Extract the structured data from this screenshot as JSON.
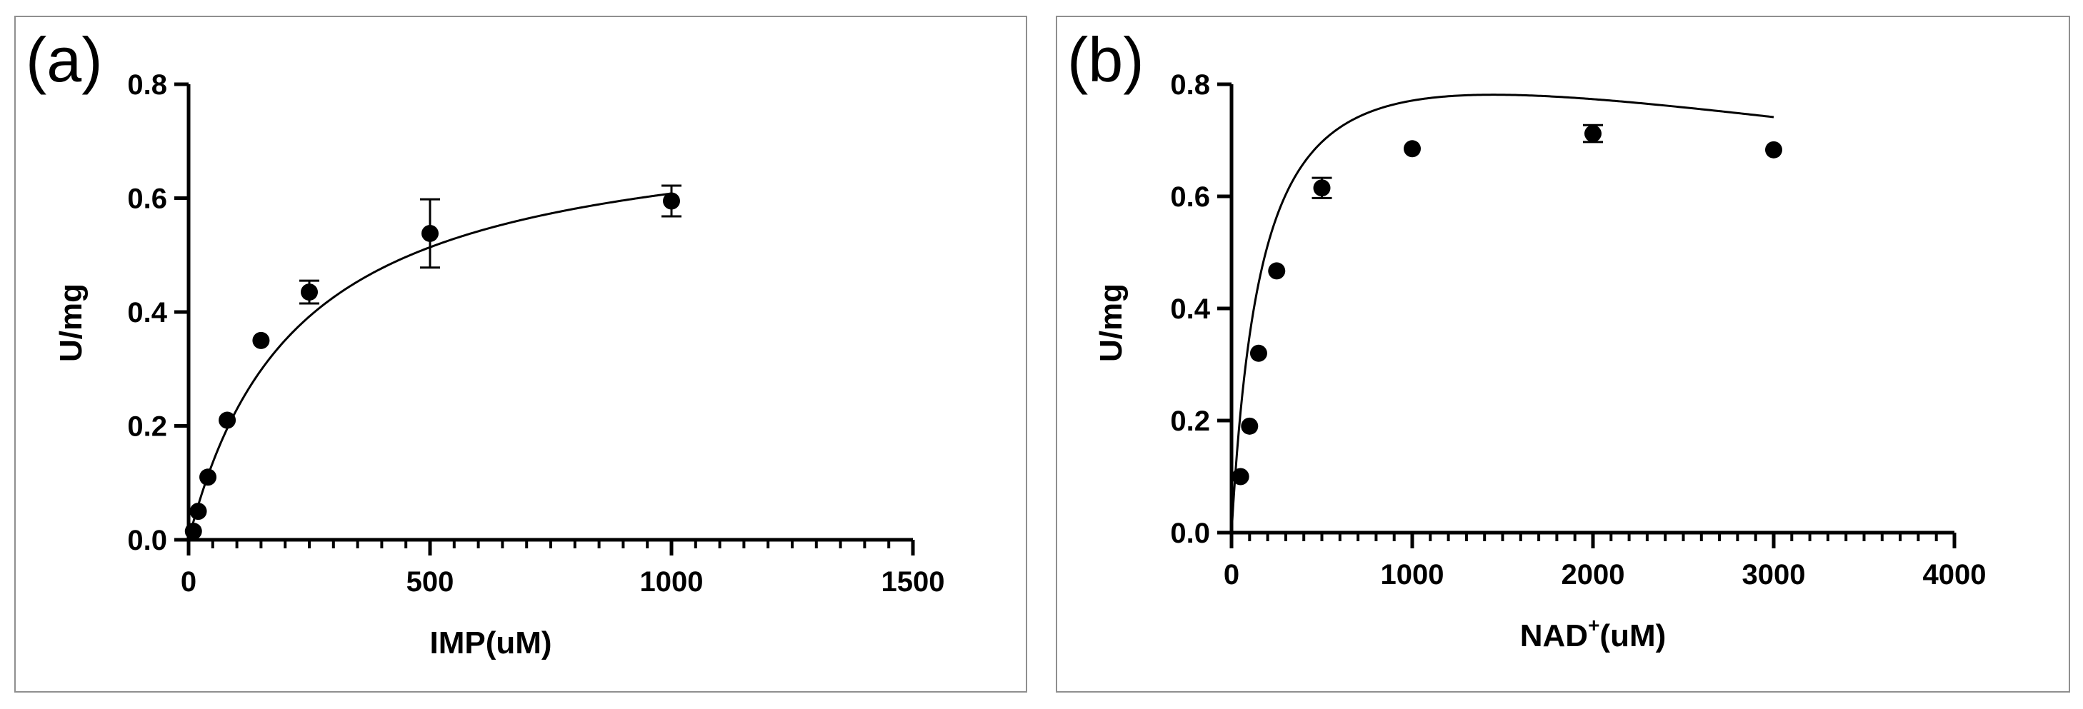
{
  "chart_data": [
    {
      "panel_label": "(a)",
      "type": "scatter",
      "xlabel": "IMP(uM)",
      "ylabel": "U/mg",
      "xlim": [
        0,
        1500
      ],
      "ylim": [
        0,
        0.8
      ],
      "x_ticks": [
        0,
        500,
        1000,
        1500
      ],
      "x_tick_labels": [
        "0",
        "500",
        "1000",
        "1500"
      ],
      "y_ticks": [
        0.0,
        0.2,
        0.4,
        0.6,
        0.8
      ],
      "y_tick_labels": [
        "0.0",
        "0.2",
        "0.4",
        "0.6",
        "0.8"
      ],
      "x_minor_step": 50,
      "points": [
        {
          "x": 10,
          "y": 0.015,
          "err": 0
        },
        {
          "x": 20,
          "y": 0.05,
          "err": 0
        },
        {
          "x": 40,
          "y": 0.11,
          "err": 0
        },
        {
          "x": 80,
          "y": 0.21,
          "err": 0
        },
        {
          "x": 150,
          "y": 0.35,
          "err": 0
        },
        {
          "x": 250,
          "y": 0.435,
          "err": 0.02
        },
        {
          "x": 500,
          "y": 0.538,
          "err": 0.06
        },
        {
          "x": 1000,
          "y": 0.595,
          "err": 0.027
        }
      ],
      "fit": {
        "model": "michaelis-menten",
        "vmax": 0.745,
        "km": 225,
        "x_range": [
          0,
          1000
        ]
      }
    },
    {
      "panel_label": "(b)",
      "type": "scatter",
      "xlabel_main": "NAD",
      "xlabel_sup": "+",
      "xlabel_unit": "(uM)",
      "ylabel": "U/mg",
      "xlim": [
        0,
        4000
      ],
      "ylim": [
        0,
        0.8
      ],
      "x_ticks": [
        0,
        1000,
        2000,
        3000,
        4000
      ],
      "x_tick_labels": [
        "0",
        "1000",
        "2000",
        "3000",
        "4000"
      ],
      "y_ticks": [
        0.0,
        0.2,
        0.4,
        0.6,
        0.8
      ],
      "y_tick_labels": [
        "0.0",
        "0.2",
        "0.4",
        "0.6",
        "0.8"
      ],
      "x_minor_step": 100,
      "points": [
        {
          "x": 50,
          "y": 0.1,
          "err": 0
        },
        {
          "x": 100,
          "y": 0.19,
          "err": 0
        },
        {
          "x": 150,
          "y": 0.32,
          "err": 0
        },
        {
          "x": 250,
          "y": 0.467,
          "err": 0
        },
        {
          "x": 500,
          "y": 0.615,
          "err": 0.018
        },
        {
          "x": 1000,
          "y": 0.685,
          "err": 0
        },
        {
          "x": 2000,
          "y": 0.712,
          "err": 0.015
        },
        {
          "x": 3000,
          "y": 0.683,
          "err": 0
        }
      ],
      "fit": {
        "model": "substrate-inhibition",
        "vmax": 0.97,
        "km": 175,
        "ki": 12000,
        "x_range": [
          0,
          3000
        ]
      }
    }
  ]
}
